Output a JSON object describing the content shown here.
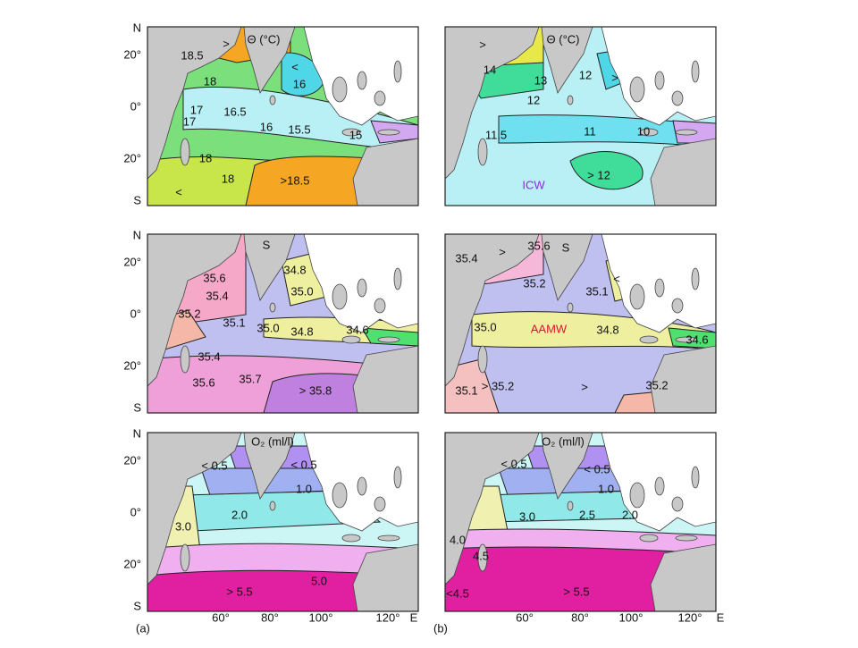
{
  "latitude_labels": [
    "N",
    "20°",
    "0°",
    "20°",
    "S"
  ],
  "columns": [
    {
      "label": "(a)",
      "longitude_labels": [
        "60°",
        "80°",
        "100°",
        "120°",
        "E"
      ],
      "panels": [
        {
          "title": "Θ (°C)",
          "labels": [
            "18.5",
            ">",
            "18",
            "17",
            "17",
            "16.5",
            "16",
            "15.5",
            "15",
            "<",
            "16",
            "18",
            "18",
            "<",
            ">18.5"
          ]
        },
        {
          "title": "S",
          "labels": [
            "35.6",
            "35.4",
            "35.2",
            "35.1",
            "35.0",
            "34.8",
            "35.0",
            "34.8",
            "34.6",
            "35.4",
            "35.6",
            "35.7",
            "> 35.8"
          ]
        },
        {
          "title": "O₂ (ml/l)",
          "labels": [
            "< 0.5",
            "< 0.5",
            "1.0",
            "2.0",
            "3.0",
            "5.0",
            "> 5.5"
          ]
        }
      ]
    },
    {
      "label": "(b)",
      "longitude_labels": [
        "60°",
        "80°",
        "100°",
        "120°",
        "E"
      ],
      "panels": [
        {
          "title": "Θ (°C)",
          "labels": [
            ">",
            "14",
            "13",
            "12",
            ">",
            "12",
            "11.5",
            "11",
            "10",
            "> 12",
            "ICW"
          ]
        },
        {
          "labels": [
            "35.4",
            ">",
            "35.6",
            "S",
            "35.2",
            "35.1",
            "<",
            "35.0",
            "AAMW",
            "34.8",
            "34.6",
            "35.1",
            "> 35.2",
            ">",
            "35.2"
          ]
        },
        {
          "title": "O₂ (ml/l)",
          "labels": [
            "< 0.5",
            "< 0.5",
            "1.0",
            "3.0",
            "2.5",
            "2.0",
            "4.0",
            "4.5",
            "<4.5",
            "> 5.5"
          ]
        }
      ]
    }
  ]
}
